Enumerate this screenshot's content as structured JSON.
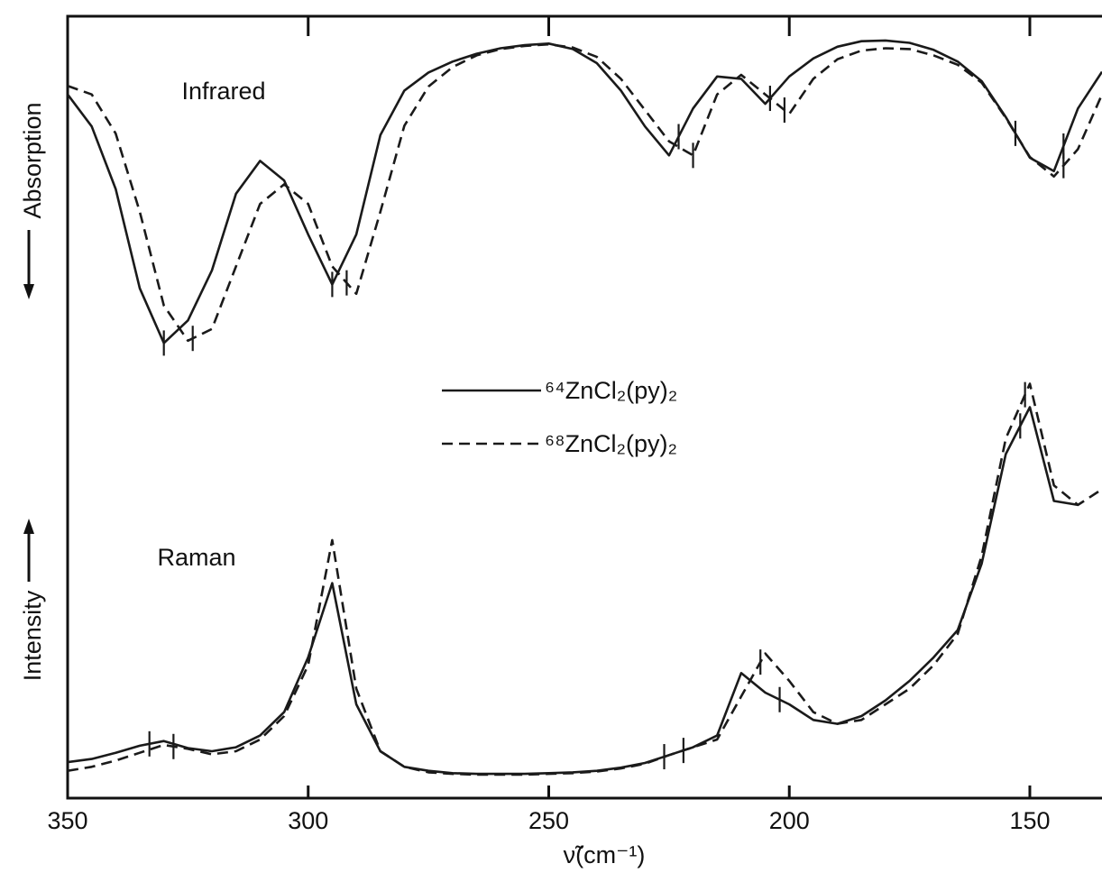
{
  "chart_data": {
    "type": "line",
    "x_label": "ν̃(cm⁻¹)",
    "y_labels": [
      "Absorption",
      "Intensity"
    ],
    "annotations": [
      "Infrared",
      "Raman"
    ],
    "xlim": [
      350,
      135
    ],
    "xticks": [
      350,
      300,
      250,
      200,
      150
    ],
    "ylim": [
      0,
      100
    ],
    "x": [
      350,
      345,
      340,
      335,
      330,
      325,
      320,
      315,
      310,
      305,
      300,
      295,
      290,
      285,
      280,
      275,
      270,
      265,
      260,
      255,
      250,
      245,
      240,
      235,
      230,
      225,
      220,
      215,
      210,
      205,
      200,
      195,
      190,
      185,
      180,
      175,
      170,
      165,
      160,
      155,
      150,
      145,
      140,
      135
    ],
    "series": [
      {
        "name": "⁶⁴ZnCl₂(py)₂",
        "color": "#1a1a1a",
        "dash": false,
        "infrared": [
          90.0,
          85.9,
          77.9,
          65.2,
          58.2,
          61.1,
          67.5,
          77.3,
          81.5,
          79.0,
          72.1,
          65.7,
          72.1,
          84.8,
          90.5,
          92.8,
          94.2,
          95.2,
          95.9,
          96.3,
          96.5,
          95.8,
          94.0,
          90.5,
          85.9,
          82.2,
          88.2,
          92.3,
          92.0,
          88.8,
          92.3,
          94.6,
          96.1,
          96.8,
          96.9,
          96.6,
          95.7,
          94.2,
          91.7,
          87.1,
          81.9,
          80.2,
          88.2,
          92.9
        ],
        "raman": [
          4.6,
          5.0,
          5.8,
          6.7,
          7.3,
          6.4,
          6.0,
          6.5,
          8.0,
          11.0,
          18.0,
          27.5,
          12.0,
          6.0,
          4.0,
          3.5,
          3.2,
          3.1,
          3.1,
          3.1,
          3.2,
          3.3,
          3.5,
          3.9,
          4.5,
          5.5,
          6.5,
          8.0,
          16.0,
          13.5,
          12.0,
          10.0,
          9.5,
          10.5,
          12.5,
          15.0,
          18.0,
          21.5,
          30.0,
          44.0,
          50.0,
          38.0,
          37.5,
          null
        ],
        "infrared_marks": [
          330,
          295,
          223,
          204,
          153,
          143
        ],
        "raman_marks": [
          333,
          226,
          202,
          152
        ]
      },
      {
        "name": "⁶⁸ZnCl₂(py)₂",
        "color": "#1a1a1a",
        "dash": true,
        "infrared": [
          91.1,
          90.0,
          85.0,
          75.0,
          63.0,
          58.5,
          60.0,
          68.0,
          76.0,
          78.5,
          76.0,
          68.0,
          64.5,
          75.0,
          86.0,
          91.0,
          93.5,
          95.0,
          95.8,
          96.2,
          96.4,
          96.0,
          94.8,
          92.0,
          88.0,
          84.0,
          82.2,
          90.0,
          92.5,
          90.0,
          87.5,
          92.0,
          94.5,
          95.6,
          95.9,
          95.8,
          95.0,
          93.8,
          91.5,
          87.0,
          82.0,
          79.5,
          83.0,
          90.0
        ],
        "raman": [
          3.5,
          4.0,
          4.8,
          5.8,
          6.8,
          6.3,
          5.6,
          6.0,
          7.5,
          10.5,
          17.0,
          33.0,
          14.0,
          6.0,
          4.0,
          3.3,
          3.1,
          3.0,
          3.0,
          3.0,
          3.1,
          3.2,
          3.4,
          3.8,
          4.4,
          5.5,
          6.5,
          7.5,
          13.0,
          18.5,
          15.0,
          11.0,
          9.5,
          10.0,
          12.0,
          14.0,
          17.0,
          21.0,
          31.0,
          46.0,
          53.0,
          40.0,
          37.5,
          39.5
        ],
        "infrared_marks": [
          324,
          292,
          220,
          201,
          143
        ],
        "raman_marks": [
          328,
          222,
          206,
          151
        ]
      }
    ]
  }
}
